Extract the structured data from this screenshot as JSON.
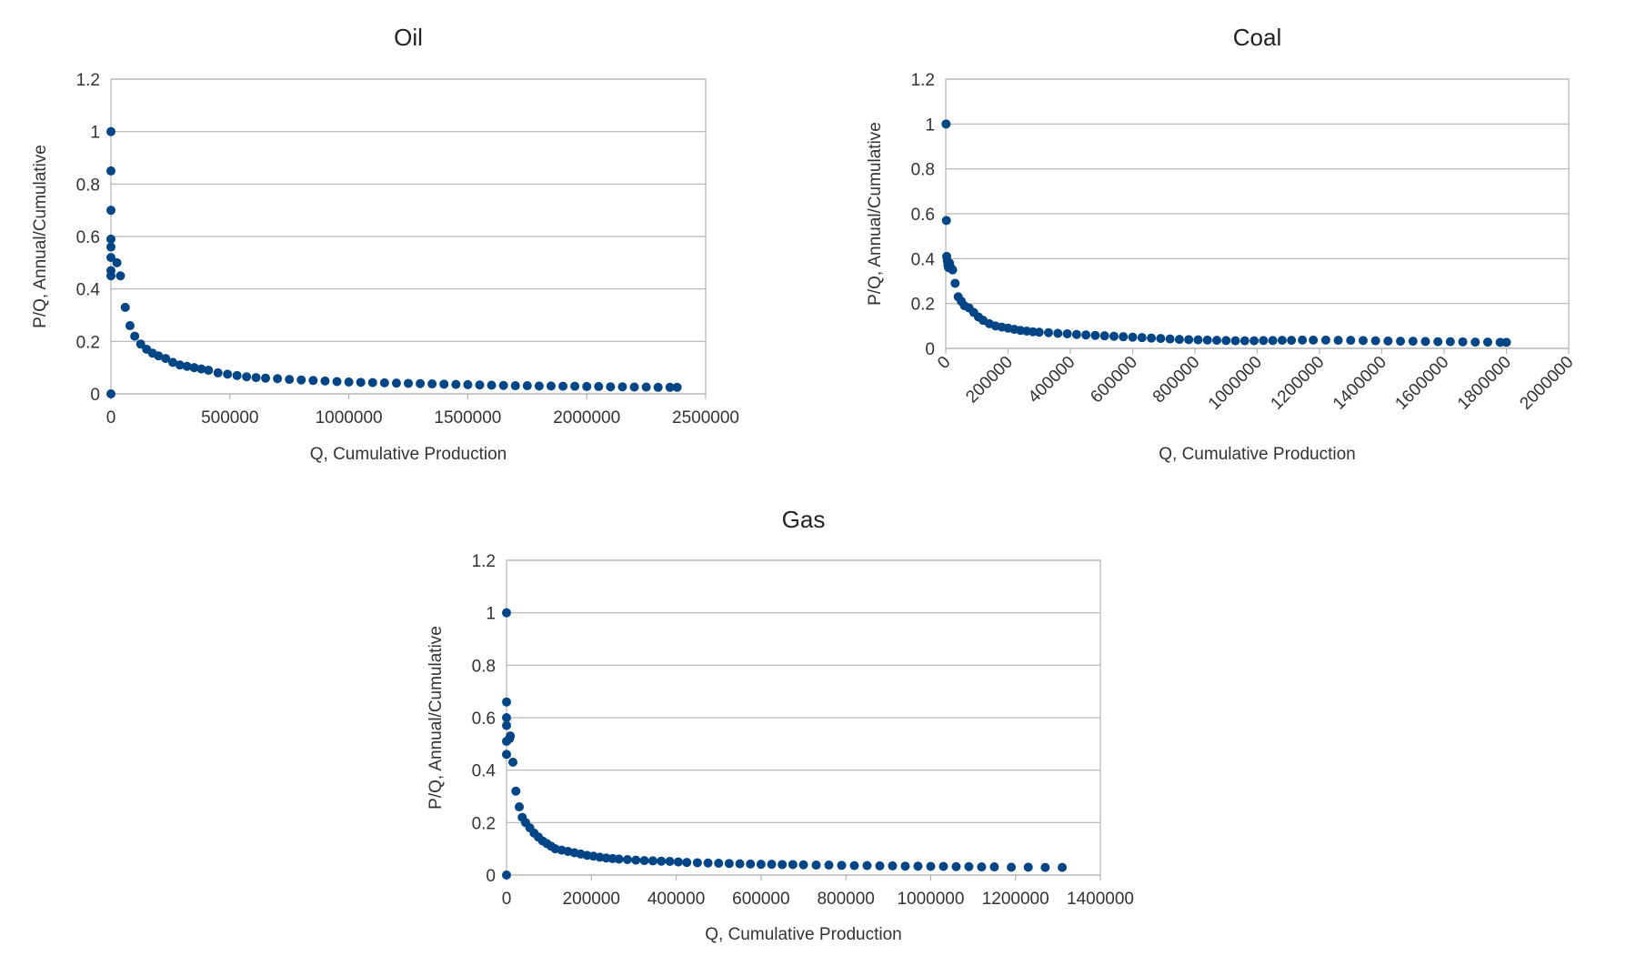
{
  "chart_data": [
    {
      "type": "scatter",
      "title": "Oil",
      "xlabel": "Q, Cumulative Production",
      "ylabel": "P/Q, Annual/Cumulative",
      "xlim": [
        0,
        2500000
      ],
      "ylim": [
        0,
        1.2
      ],
      "xticks": [
        0,
        500000,
        1000000,
        1500000,
        2000000,
        2500000
      ],
      "yticks": [
        0,
        0.2,
        0.4,
        0.6,
        0.8,
        1,
        1.2
      ],
      "xtick_labels": [
        "0",
        "500000",
        "1000000",
        "1500000",
        "2000000",
        "2500000"
      ],
      "ytick_labels": [
        "0",
        "0.2",
        "0.4",
        "0.6",
        "0.8",
        "1",
        "1.2"
      ],
      "x_tick_rotation": 0,
      "grid": true,
      "series_color": "#004586",
      "points": [
        [
          0,
          0
        ],
        [
          1,
          1.0
        ],
        [
          3,
          0.85
        ],
        [
          5,
          0.7
        ],
        [
          7,
          0.59
        ],
        [
          9,
          0.56
        ],
        [
          10,
          0.52
        ],
        [
          12,
          0.47
        ],
        [
          14,
          0.45
        ],
        [
          25000,
          0.5
        ],
        [
          40000,
          0.45
        ],
        [
          60000,
          0.33
        ],
        [
          80000,
          0.26
        ],
        [
          100000,
          0.22
        ],
        [
          125000,
          0.19
        ],
        [
          150000,
          0.17
        ],
        [
          175000,
          0.155
        ],
        [
          200000,
          0.145
        ],
        [
          230000,
          0.135
        ],
        [
          260000,
          0.12
        ],
        [
          290000,
          0.11
        ],
        [
          320000,
          0.105
        ],
        [
          350000,
          0.1
        ],
        [
          380000,
          0.095
        ],
        [
          410000,
          0.09
        ],
        [
          450000,
          0.08
        ],
        [
          490000,
          0.075
        ],
        [
          530000,
          0.07
        ],
        [
          570000,
          0.065
        ],
        [
          610000,
          0.062
        ],
        [
          650000,
          0.06
        ],
        [
          700000,
          0.058
        ],
        [
          750000,
          0.055
        ],
        [
          800000,
          0.053
        ],
        [
          850000,
          0.051
        ],
        [
          900000,
          0.049
        ],
        [
          950000,
          0.047
        ],
        [
          1000000,
          0.045
        ],
        [
          1050000,
          0.044
        ],
        [
          1100000,
          0.043
        ],
        [
          1150000,
          0.042
        ],
        [
          1200000,
          0.041
        ],
        [
          1250000,
          0.04
        ],
        [
          1300000,
          0.039
        ],
        [
          1350000,
          0.038
        ],
        [
          1400000,
          0.037
        ],
        [
          1450000,
          0.036
        ],
        [
          1500000,
          0.035
        ],
        [
          1550000,
          0.034
        ],
        [
          1600000,
          0.033
        ],
        [
          1650000,
          0.032
        ],
        [
          1700000,
          0.031
        ],
        [
          1750000,
          0.031
        ],
        [
          1800000,
          0.03
        ],
        [
          1850000,
          0.03
        ],
        [
          1900000,
          0.029
        ],
        [
          1950000,
          0.029
        ],
        [
          2000000,
          0.028
        ],
        [
          2050000,
          0.028
        ],
        [
          2100000,
          0.027
        ],
        [
          2150000,
          0.027
        ],
        [
          2200000,
          0.026
        ],
        [
          2250000,
          0.026
        ],
        [
          2300000,
          0.025
        ],
        [
          2350000,
          0.025
        ],
        [
          2380000,
          0.025
        ]
      ]
    },
    {
      "type": "scatter",
      "title": "Coal",
      "xlabel": "Q, Cumulative Production",
      "ylabel": "P/Q, Annual/Cumulative",
      "xlim": [
        0,
        2000000
      ],
      "ylim": [
        0,
        1.2
      ],
      "xticks": [
        0,
        200000,
        400000,
        600000,
        800000,
        1000000,
        1200000,
        1400000,
        1600000,
        1800000,
        2000000
      ],
      "yticks": [
        0,
        0.2,
        0.4,
        0.6,
        0.8,
        1,
        1.2
      ],
      "xtick_labels": [
        "0",
        "200000",
        "400000",
        "600000",
        "800000",
        "1000000",
        "1200000",
        "1400000",
        "1600000",
        "1800000",
        "2000000"
      ],
      "ytick_labels": [
        "0",
        "0.2",
        "0.4",
        "0.6",
        "0.8",
        "1",
        "1.2"
      ],
      "x_tick_rotation": -45,
      "grid": true,
      "series_color": "#004586",
      "points": [
        [
          1000,
          1.0
        ],
        [
          2000,
          0.57
        ],
        [
          3000,
          0.41
        ],
        [
          5000,
          0.39
        ],
        [
          7000,
          0.37
        ],
        [
          9000,
          0.36
        ],
        [
          12000,
          0.38
        ],
        [
          16000,
          0.36
        ],
        [
          22000,
          0.35
        ],
        [
          30000,
          0.29
        ],
        [
          40000,
          0.23
        ],
        [
          50000,
          0.21
        ],
        [
          60000,
          0.19
        ],
        [
          75000,
          0.18
        ],
        [
          90000,
          0.16
        ],
        [
          105000,
          0.14
        ],
        [
          120000,
          0.125
        ],
        [
          140000,
          0.11
        ],
        [
          160000,
          0.1
        ],
        [
          180000,
          0.095
        ],
        [
          200000,
          0.09
        ],
        [
          220000,
          0.085
        ],
        [
          240000,
          0.08
        ],
        [
          260000,
          0.077
        ],
        [
          280000,
          0.074
        ],
        [
          300000,
          0.072
        ],
        [
          330000,
          0.07
        ],
        [
          360000,
          0.067
        ],
        [
          390000,
          0.065
        ],
        [
          420000,
          0.062
        ],
        [
          450000,
          0.06
        ],
        [
          480000,
          0.058
        ],
        [
          510000,
          0.056
        ],
        [
          540000,
          0.054
        ],
        [
          570000,
          0.052
        ],
        [
          600000,
          0.05
        ],
        [
          630000,
          0.048
        ],
        [
          660000,
          0.046
        ],
        [
          690000,
          0.044
        ],
        [
          720000,
          0.042
        ],
        [
          750000,
          0.04
        ],
        [
          780000,
          0.039
        ],
        [
          810000,
          0.038
        ],
        [
          840000,
          0.037
        ],
        [
          870000,
          0.036
        ],
        [
          900000,
          0.035
        ],
        [
          930000,
          0.034
        ],
        [
          960000,
          0.034
        ],
        [
          990000,
          0.034
        ],
        [
          1020000,
          0.035
        ],
        [
          1050000,
          0.035
        ],
        [
          1080000,
          0.036
        ],
        [
          1110000,
          0.036
        ],
        [
          1145000,
          0.037
        ],
        [
          1180000,
          0.037
        ],
        [
          1220000,
          0.037
        ],
        [
          1260000,
          0.036
        ],
        [
          1300000,
          0.036
        ],
        [
          1340000,
          0.035
        ],
        [
          1380000,
          0.034
        ],
        [
          1420000,
          0.033
        ],
        [
          1460000,
          0.032
        ],
        [
          1500000,
          0.032
        ],
        [
          1540000,
          0.031
        ],
        [
          1580000,
          0.03
        ],
        [
          1620000,
          0.03
        ],
        [
          1660000,
          0.029
        ],
        [
          1700000,
          0.028
        ],
        [
          1740000,
          0.028
        ],
        [
          1780000,
          0.027
        ],
        [
          1800000,
          0.027
        ]
      ]
    },
    {
      "type": "scatter",
      "title": "Gas",
      "xlabel": "Q, Cumulative Production",
      "ylabel": "P/Q, Annual/Cumulative",
      "xlim": [
        0,
        1400000
      ],
      "ylim": [
        0,
        1.2
      ],
      "xticks": [
        0,
        200000,
        400000,
        600000,
        800000,
        1000000,
        1200000,
        1400000
      ],
      "yticks": [
        0,
        0.2,
        0.4,
        0.6,
        0.8,
        1,
        1.2
      ],
      "xtick_labels": [
        "0",
        "200000",
        "400000",
        "600000",
        "800000",
        "1000000",
        "1200000",
        "1400000"
      ],
      "ytick_labels": [
        "0",
        "0.2",
        "0.4",
        "0.6",
        "0.8",
        "1",
        "1.2"
      ],
      "x_tick_rotation": 0,
      "grid": true,
      "series_color": "#004586",
      "points": [
        [
          0,
          0
        ],
        [
          1,
          1.0
        ],
        [
          2,
          0.66
        ],
        [
          3,
          0.6
        ],
        [
          4,
          0.57
        ],
        [
          5,
          0.51
        ],
        [
          6,
          0.46
        ],
        [
          7000,
          0.52
        ],
        [
          9000,
          0.53
        ],
        [
          15000,
          0.43
        ],
        [
          22000,
          0.32
        ],
        [
          30000,
          0.26
        ],
        [
          37000,
          0.22
        ],
        [
          45000,
          0.2
        ],
        [
          55000,
          0.18
        ],
        [
          65000,
          0.16
        ],
        [
          75000,
          0.145
        ],
        [
          85000,
          0.13
        ],
        [
          95000,
          0.12
        ],
        [
          105000,
          0.11
        ],
        [
          115000,
          0.1
        ],
        [
          130000,
          0.095
        ],
        [
          145000,
          0.09
        ],
        [
          160000,
          0.085
        ],
        [
          175000,
          0.08
        ],
        [
          190000,
          0.075
        ],
        [
          205000,
          0.072
        ],
        [
          220000,
          0.068
        ],
        [
          235000,
          0.065
        ],
        [
          250000,
          0.063
        ],
        [
          265000,
          0.061
        ],
        [
          285000,
          0.059
        ],
        [
          305000,
          0.057
        ],
        [
          325000,
          0.055
        ],
        [
          345000,
          0.054
        ],
        [
          365000,
          0.053
        ],
        [
          385000,
          0.052
        ],
        [
          405000,
          0.05
        ],
        [
          425000,
          0.048
        ],
        [
          450000,
          0.047
        ],
        [
          475000,
          0.046
        ],
        [
          500000,
          0.045
        ],
        [
          525000,
          0.044
        ],
        [
          550000,
          0.043
        ],
        [
          575000,
          0.042
        ],
        [
          600000,
          0.041
        ],
        [
          625000,
          0.041
        ],
        [
          650000,
          0.04
        ],
        [
          675000,
          0.04
        ],
        [
          700000,
          0.039
        ],
        [
          730000,
          0.038
        ],
        [
          760000,
          0.038
        ],
        [
          790000,
          0.037
        ],
        [
          820000,
          0.036
        ],
        [
          850000,
          0.036
        ],
        [
          880000,
          0.035
        ],
        [
          910000,
          0.035
        ],
        [
          940000,
          0.034
        ],
        [
          970000,
          0.034
        ],
        [
          1000000,
          0.033
        ],
        [
          1030000,
          0.033
        ],
        [
          1060000,
          0.032
        ],
        [
          1090000,
          0.032
        ],
        [
          1120000,
          0.031
        ],
        [
          1150000,
          0.031
        ],
        [
          1190000,
          0.03
        ],
        [
          1230000,
          0.03
        ],
        [
          1270000,
          0.029
        ],
        [
          1310000,
          0.029
        ]
      ]
    }
  ]
}
